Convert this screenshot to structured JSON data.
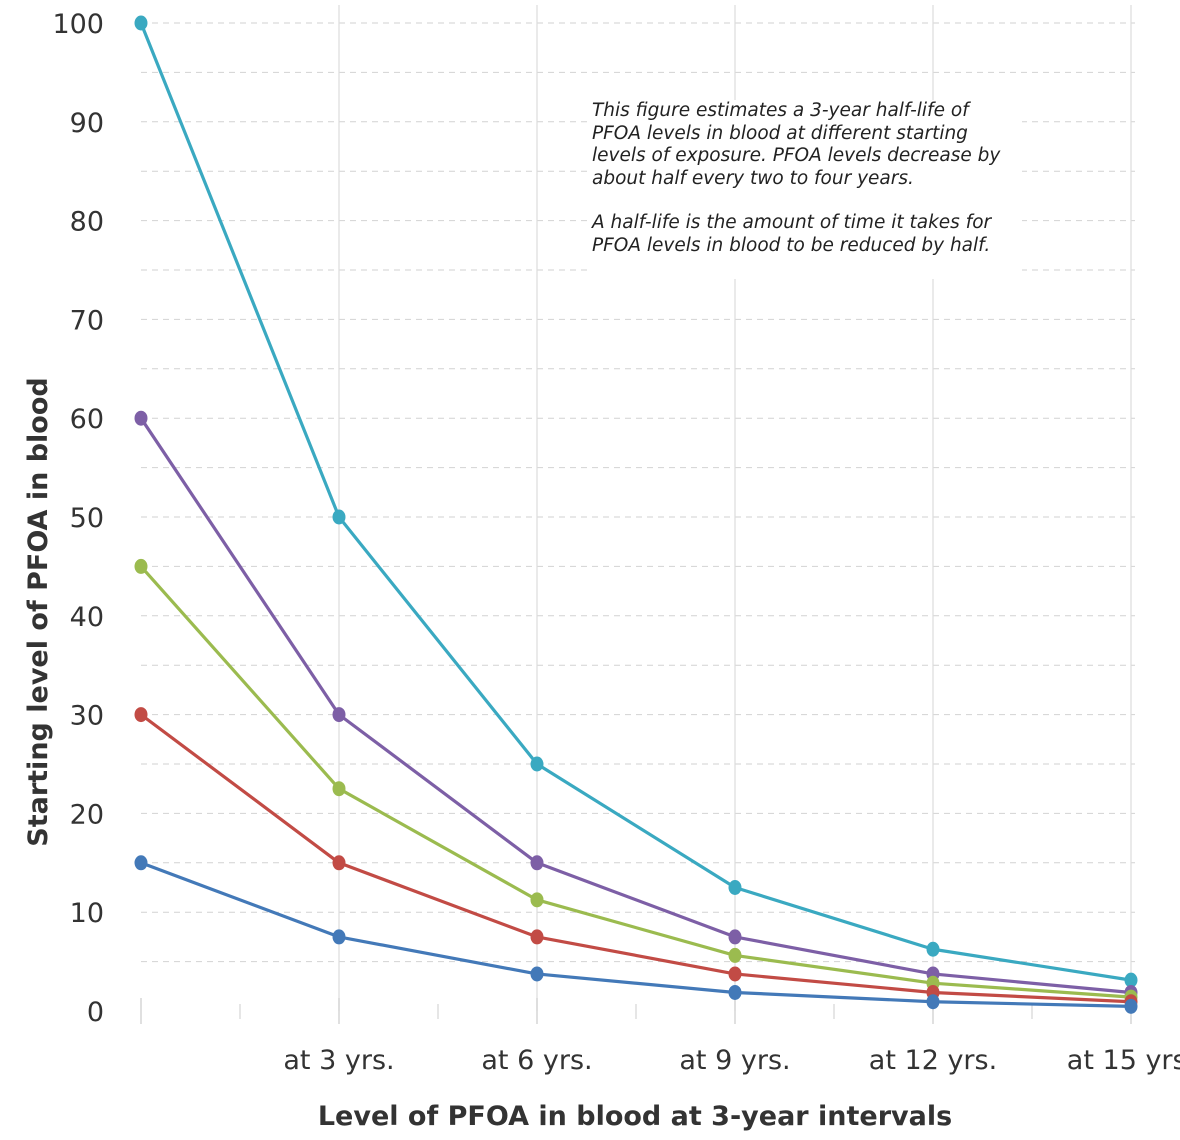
{
  "chart_data": {
    "type": "line",
    "title": "",
    "xlabel": "Level of PFOA in blood at 3-year intervals",
    "ylabel": "Starting level of PFOA in blood",
    "categories": [
      "",
      "at 3 yrs.",
      "at 6 yrs.",
      "at 9 yrs.",
      "at 12 yrs.",
      "at 15 yrs."
    ],
    "yticks": [
      "0",
      "10",
      "20",
      "30",
      "40",
      "50",
      "60",
      "70",
      "80",
      "90",
      "100"
    ],
    "ylim": [
      0,
      100
    ],
    "grid": true,
    "series": [
      {
        "color": "#3aa9c1",
        "values": [
          100,
          50,
          25,
          12.5,
          6.25,
          3.125
        ]
      },
      {
        "color": "#7d5fa6",
        "values": [
          60,
          30,
          15,
          7.5,
          3.75,
          1.875
        ]
      },
      {
        "color": "#9bbb4f",
        "values": [
          45,
          22.5,
          11.25,
          5.625,
          2.8125,
          1.40625
        ]
      },
      {
        "color": "#c24b45",
        "values": [
          30,
          15,
          7.5,
          3.75,
          1.875,
          0.9375
        ]
      },
      {
        "color": "#4379b8",
        "values": [
          15,
          7.5,
          3.75,
          1.875,
          0.9375,
          0.46875
        ]
      }
    ],
    "annotation": {
      "paragraph1": "This figure estimates a 3-year half-life of PFOA levels in blood at different starting levels of exposure. PFOA levels decrease by about half every two to four years.",
      "paragraph2": "A half-life is the amount of time it takes for PFOA levels in blood to be reduced by half."
    }
  }
}
